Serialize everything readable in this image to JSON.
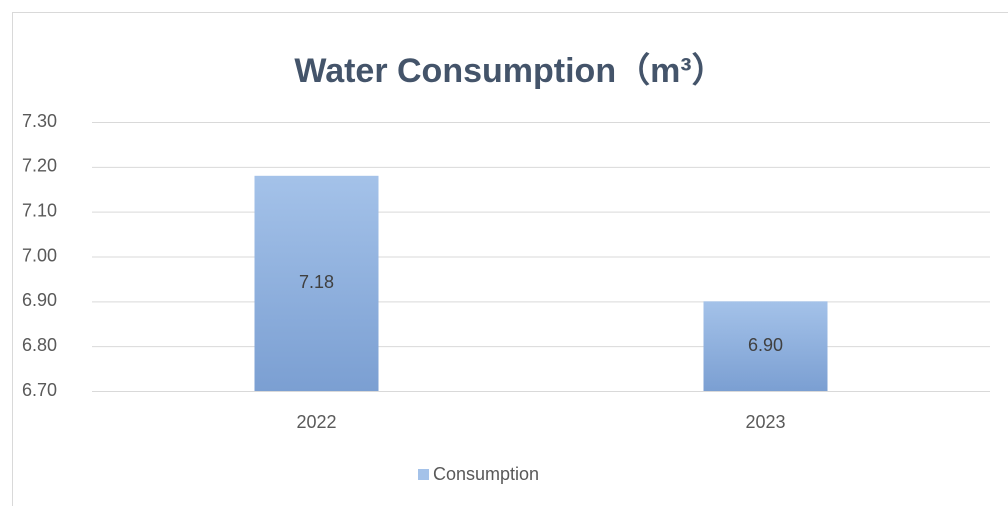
{
  "chart_data": {
    "type": "bar",
    "title": "Water Consumption（m³）",
    "categories": [
      "2022",
      "2023"
    ],
    "values": [
      7.18,
      6.9
    ],
    "value_labels": [
      "7.18",
      "6.90"
    ],
    "series_name": "Consumption",
    "color": "#a4c2e9",
    "ylim": [
      6.7,
      7.3
    ],
    "yticks": [
      {
        "value": 6.7,
        "label": "6.70"
      },
      {
        "value": 6.8,
        "label": "6.80"
      },
      {
        "value": 6.9,
        "label": "6.90"
      },
      {
        "value": 7.0,
        "label": "7.00"
      },
      {
        "value": 7.1,
        "label": "7.10"
      },
      {
        "value": 7.2,
        "label": "7.20"
      },
      {
        "value": 7.3,
        "label": "7.30"
      }
    ],
    "grid": true,
    "legend": "bottom"
  }
}
